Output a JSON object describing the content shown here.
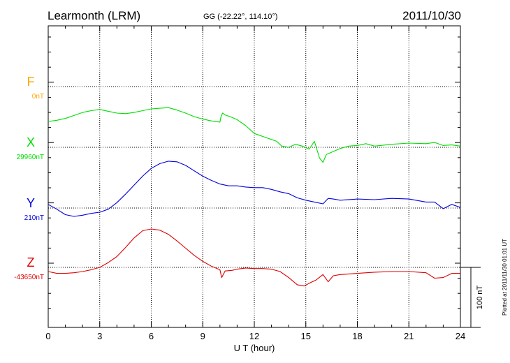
{
  "header": {
    "station": "Learmonth (LRM)",
    "coords": "GG (-22.22°, 114.10°)",
    "date": "2011/10/30"
  },
  "footer": {
    "plotted": "Plotted at 2011/11/30 01:01 UT"
  },
  "chart_data": {
    "type": "line",
    "xlabel": "U T (hour)",
    "xlim": [
      0,
      24
    ],
    "xticks": [
      "0",
      "3",
      "6",
      "9",
      "12",
      "15",
      "18",
      "21",
      "24"
    ],
    "scale_bar": {
      "label": "100 nT",
      "value_nT": 100
    },
    "unit": "nT",
    "grid": true,
    "series": [
      {
        "name": "F",
        "baseline": "0nT",
        "baseline_nT": 0,
        "color": "#ffa500",
        "x": [],
        "values": []
      },
      {
        "name": "X",
        "baseline": "29960nT",
        "baseline_nT": 29960,
        "color": "#00dd00",
        "x": [
          0,
          0.5,
          1,
          1.5,
          2,
          2.5,
          3,
          3.5,
          4,
          4.5,
          5,
          5.5,
          6,
          6.5,
          7,
          7.5,
          8,
          8.5,
          9,
          9.5,
          10,
          10.05,
          10.15,
          10.3,
          10.6,
          11,
          11.5,
          12,
          12.3,
          12.6,
          13,
          13.3,
          13.6,
          14,
          14.4,
          14.8,
          15.2,
          15.5,
          15.8,
          16,
          16.2,
          16.6,
          17,
          17.5,
          18,
          18.5,
          19,
          20,
          21,
          22,
          22.5,
          23,
          23.5,
          24
        ],
        "values": [
          30003,
          30005,
          30008,
          30013,
          30018,
          30021,
          30023,
          30020,
          30017,
          30016,
          30018,
          30021,
          30024,
          30025,
          30026,
          30022,
          30017,
          30011,
          30007,
          30004,
          30002,
          30010,
          30017,
          30014,
          30011,
          30006,
          29996,
          29983,
          29980,
          29977,
          29973,
          29970,
          29962,
          29960,
          29965,
          29962,
          29957,
          29970,
          29942,
          29935,
          29948,
          29953,
          29958,
          29962,
          29963,
          29966,
          29962,
          29965,
          29967,
          29966,
          29968,
          29963,
          29964,
          29962
        ]
      },
      {
        "name": "Y",
        "baseline": "210nT",
        "baseline_nT": 210,
        "color": "#0000dd",
        "x": [
          0,
          0.5,
          1,
          1.5,
          2,
          2.5,
          3,
          3.5,
          4,
          4.5,
          5,
          5.5,
          6,
          6.5,
          7,
          7.5,
          8,
          8.5,
          9,
          9.5,
          10,
          10.5,
          11,
          11.5,
          12,
          12.5,
          13,
          13.5,
          14,
          14.5,
          15,
          15.5,
          16,
          16.3,
          16.6,
          17,
          18,
          19,
          20,
          21,
          22,
          22.5,
          23,
          23.5,
          24
        ],
        "values": [
          216,
          208,
          199,
          196,
          198,
          201,
          203,
          208,
          219,
          233,
          248,
          263,
          276,
          284,
          288,
          287,
          281,
          272,
          263,
          256,
          250,
          247,
          247,
          245,
          244,
          244,
          241,
          237,
          234,
          227,
          223,
          220,
          217,
          226,
          225,
          223,
          225,
          224,
          226,
          225,
          220,
          220,
          209,
          216,
          211
        ]
      },
      {
        "name": "Z",
        "baseline": "-43650nT",
        "baseline_nT": -43650,
        "color": "#dd0000",
        "x": [
          0,
          0.5,
          1,
          1.5,
          2,
          2.5,
          3,
          3.5,
          4,
          4.5,
          5,
          5.5,
          6,
          6.5,
          7,
          7.5,
          8,
          8.5,
          9,
          9.5,
          10,
          10.1,
          10.3,
          10.7,
          11,
          11.5,
          12,
          12.5,
          13,
          13.5,
          14,
          14.5,
          14.9,
          15.3,
          15.6,
          16,
          16.3,
          16.6,
          17,
          18,
          19,
          20,
          21,
          22,
          22.5,
          23,
          23.5,
          24
        ],
        "values": [
          -43657,
          -43660,
          -43660,
          -43659,
          -43657,
          -43654,
          -43650,
          -43642,
          -43632,
          -43617,
          -43601,
          -43589,
          -43586,
          -43588,
          -43595,
          -43606,
          -43618,
          -43630,
          -43640,
          -43648,
          -43654,
          -43667,
          -43656,
          -43655,
          -43653,
          -43651,
          -43652,
          -43652,
          -43653,
          -43657,
          -43667,
          -43679,
          -43681,
          -43675,
          -43671,
          -43662,
          -43674,
          -43664,
          -43662,
          -43660,
          -43658,
          -43657,
          -43657,
          -43659,
          -43668,
          -43667,
          -43660,
          -43660
        ]
      }
    ]
  }
}
